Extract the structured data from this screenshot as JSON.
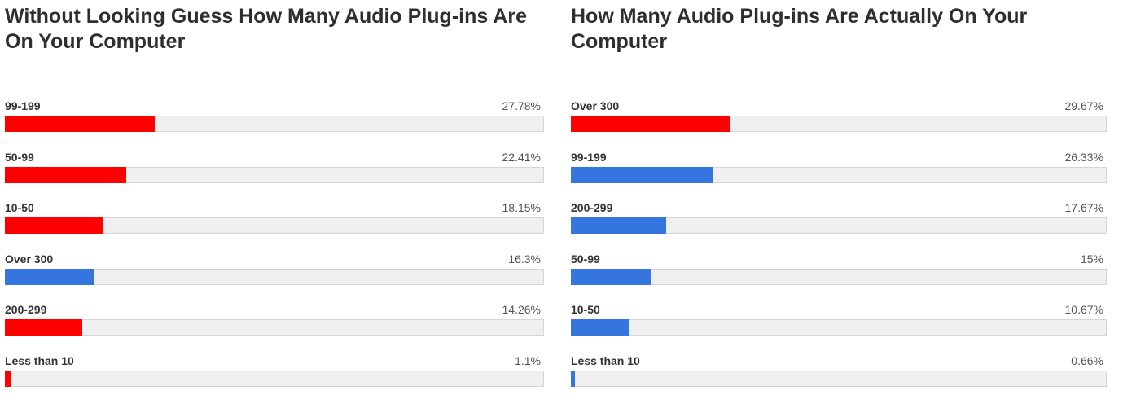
{
  "chart_data": [
    {
      "type": "bar",
      "title": "Without Looking Guess How Many Audio Plug-ins Are On Your Computer",
      "categories": [
        "99-199",
        "50-99",
        "10-50",
        "Over 300",
        "200-299",
        "Less than 10"
      ],
      "values": [
        27.78,
        22.41,
        18.15,
        16.3,
        14.26,
        1.1
      ],
      "value_labels": [
        "27.78%",
        "22.41%",
        "18.15%",
        "16.3%",
        "14.26%",
        "1.1%"
      ],
      "bar_colors": [
        "#fe0000",
        "#fe0000",
        "#fe0000",
        "#3576de",
        "#fe0000",
        "#fe0000"
      ],
      "xlim": [
        0,
        100
      ],
      "orientation": "horizontal"
    },
    {
      "type": "bar",
      "title": "How Many Audio Plug-ins Are Actually On Your Computer",
      "categories": [
        "Over 300",
        "99-199",
        "200-299",
        "50-99",
        "10-50",
        "Less than 10"
      ],
      "values": [
        29.67,
        26.33,
        17.67,
        15,
        10.67,
        0.66
      ],
      "value_labels": [
        "29.67%",
        "26.33%",
        "17.67%",
        "15%",
        "10.67%",
        "0.66%"
      ],
      "bar_colors": [
        "#fe0000",
        "#3576de",
        "#3576de",
        "#3576de",
        "#3576de",
        "#3576de"
      ],
      "xlim": [
        0,
        100
      ],
      "orientation": "horizontal"
    }
  ],
  "colors": {
    "highlight": "#fe0000",
    "default": "#3576de",
    "track": "#efefef"
  }
}
